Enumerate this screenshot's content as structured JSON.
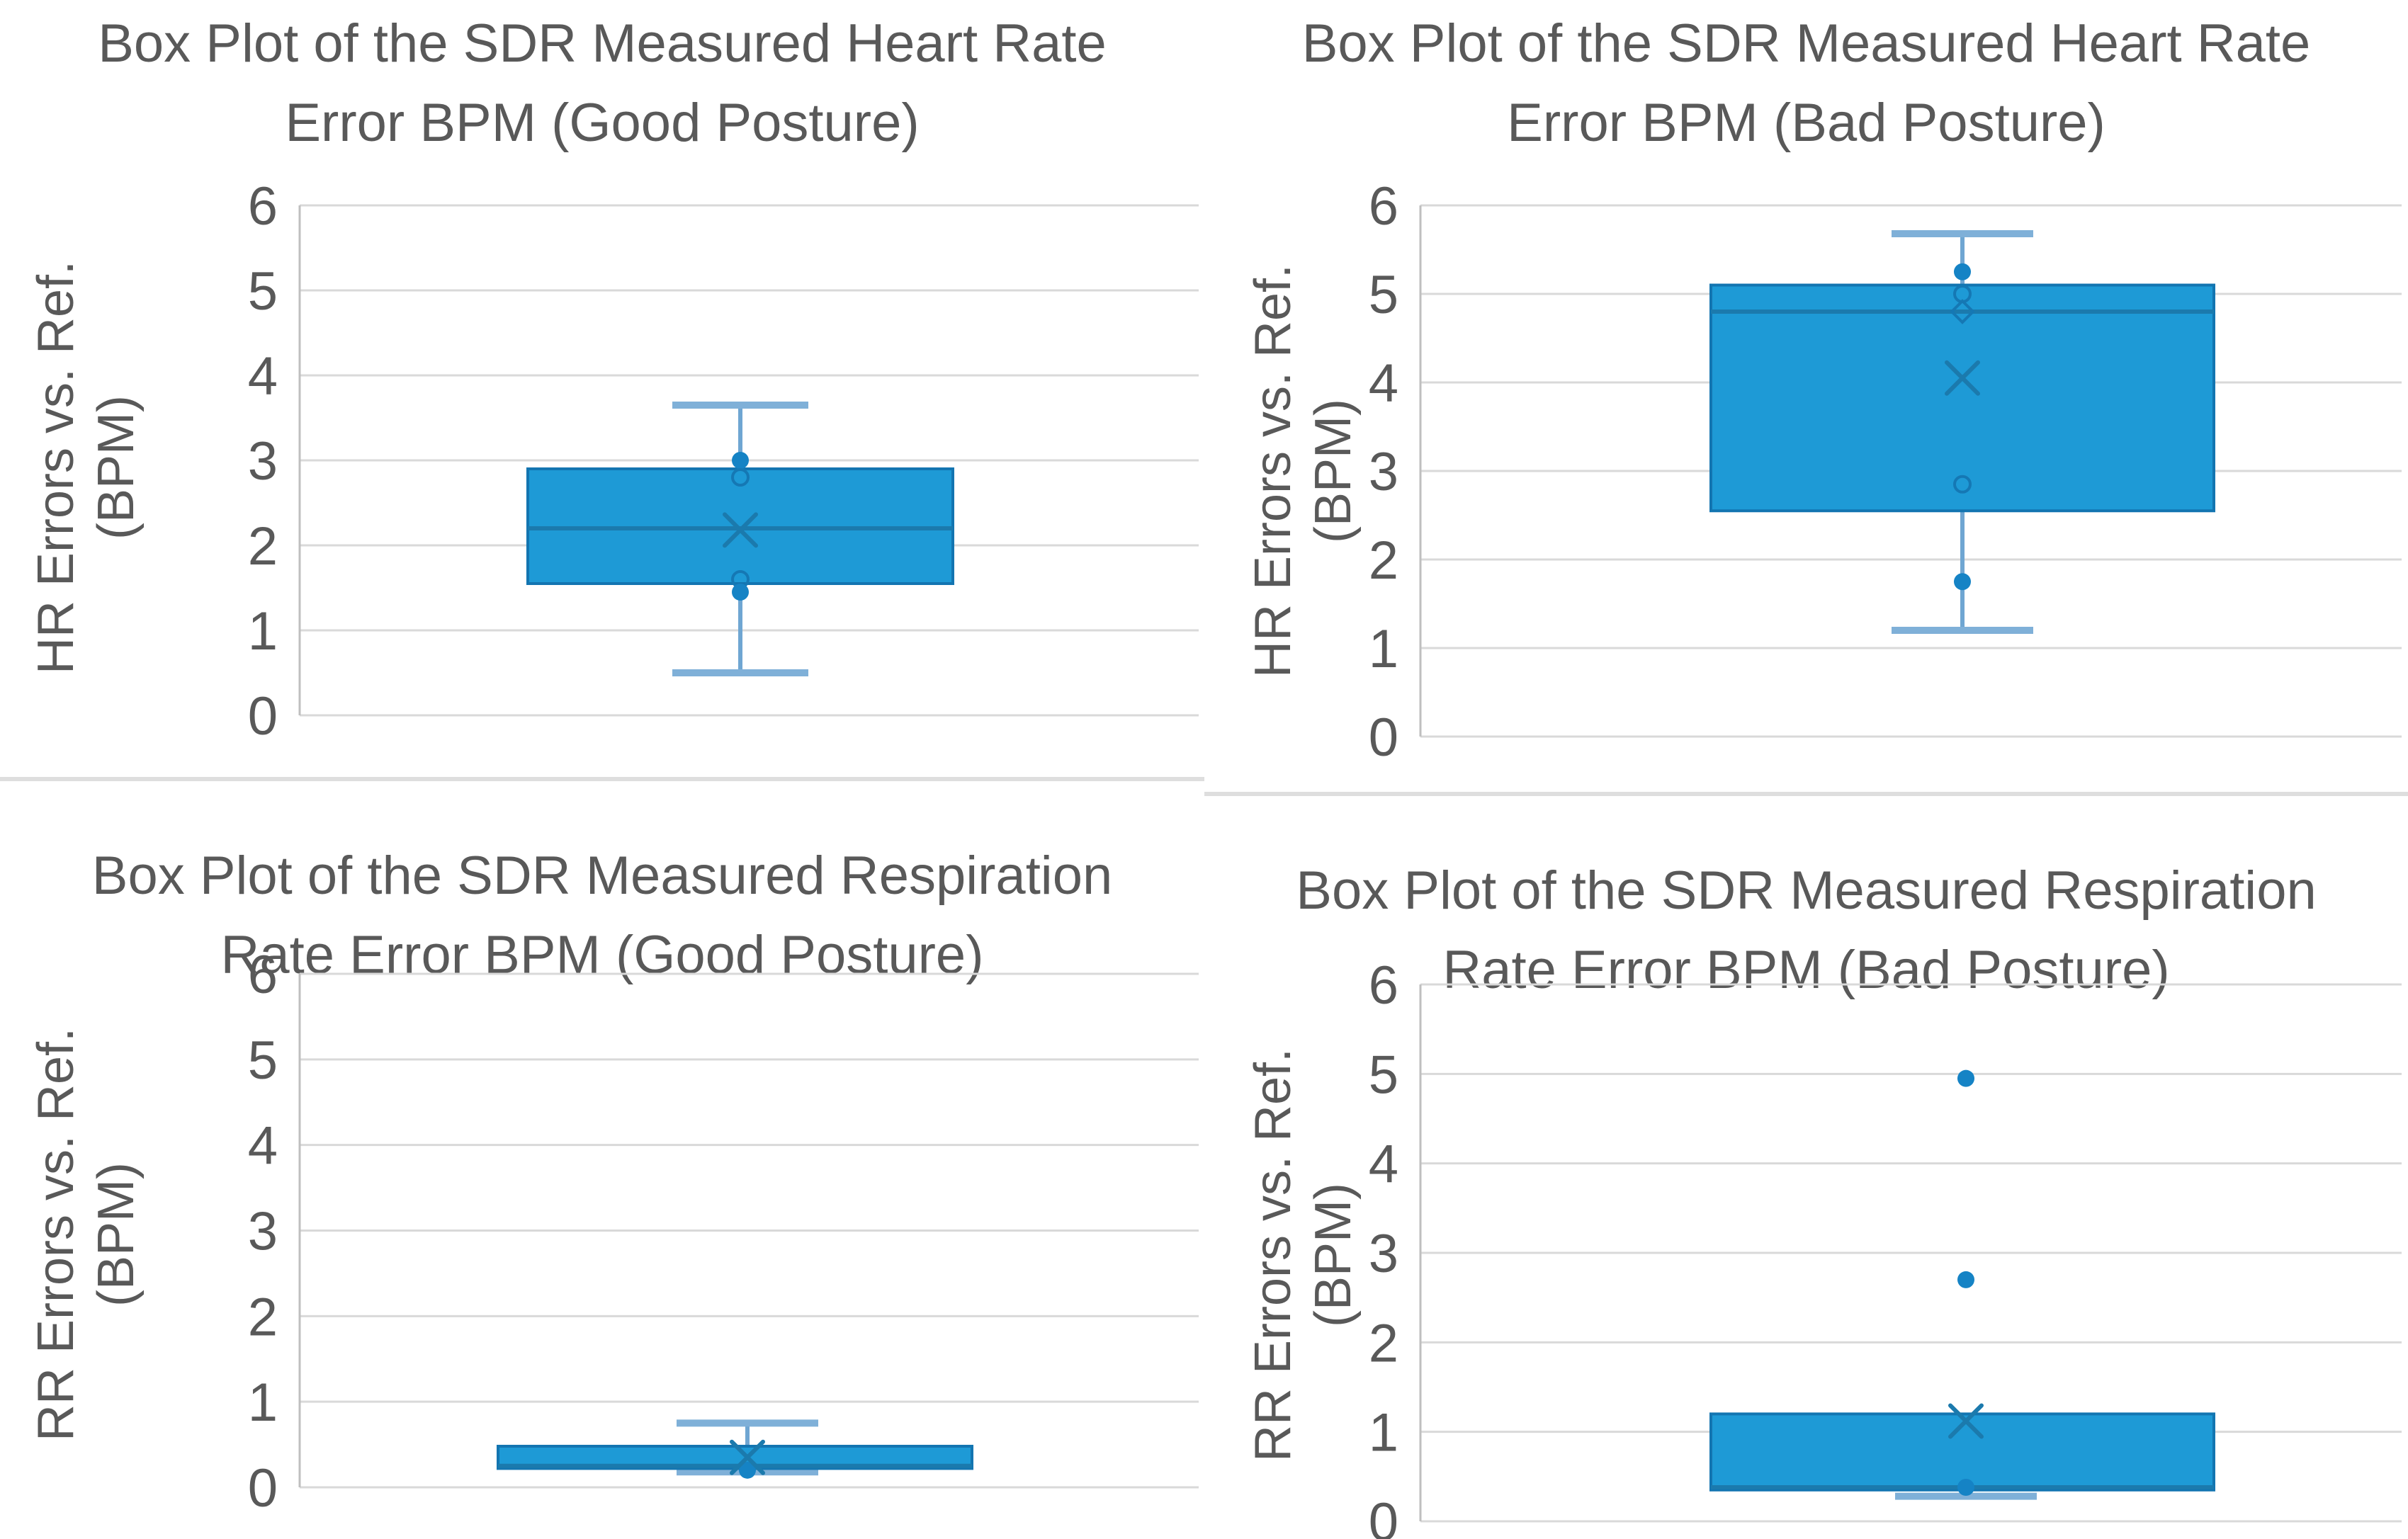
{
  "page": {
    "background": "#ffffff"
  },
  "palette": {
    "title_color": "#595959",
    "tick_color": "#595959",
    "axis_label_color": "#595959",
    "gridline_color": "#D9D9D9",
    "axis_line_color": "#BFBFBF",
    "box_fill": "#1E9AD6",
    "box_border": "#1375B1",
    "median_color": "#1B7AAD",
    "mean_color": "#1B7AAD",
    "whisker_line_color": "#6FA6D2",
    "whisker_cap_color": "#7FB0D8",
    "point_fill": "#1583C5",
    "point_open_stroke": "#1578B4",
    "divider_color": "#DEDEDE"
  },
  "chart_data": [
    {
      "type": "boxplot",
      "title_line1": "Box Plot of the SDR Measured Heart Rate",
      "title_line2": "Error BPM (Good Posture)",
      "ylabel_line1": "HR Errors vs. Ref.",
      "ylabel_line2": "(BPM)",
      "ylim": [
        0,
        6
      ],
      "yticks": [
        0,
        1,
        2,
        3,
        4,
        5,
        6
      ],
      "grid": "horizontal",
      "legend": "none",
      "box": {
        "q1": 1.55,
        "median": 2.2,
        "q3": 2.9,
        "mean": 2.18,
        "whisker_low": 0.5,
        "whisker_high": 3.65
      },
      "points": [
        {
          "value": 3.0,
          "style": "filled"
        },
        {
          "value": 2.8,
          "style": "open"
        },
        {
          "value": 1.6,
          "style": "open"
        },
        {
          "value": 1.45,
          "style": "filled"
        }
      ]
    },
    {
      "type": "boxplot",
      "title_line1": "Box Plot of the SDR Measured Heart Rate",
      "title_line2": "Error BPM (Bad Posture)",
      "ylabel_line1": "HR Errors vs. Ref.",
      "ylabel_line2": "(BPM)",
      "ylim": [
        0,
        6
      ],
      "yticks": [
        0,
        1,
        2,
        3,
        4,
        5,
        6
      ],
      "grid": "horizontal",
      "legend": "none",
      "box": {
        "q1": 2.55,
        "median": 4.8,
        "q3": 5.1,
        "mean": 4.05,
        "whisker_low": 1.2,
        "whisker_high": 5.68
      },
      "points": [
        {
          "value": 5.25,
          "style": "filled"
        },
        {
          "value": 5.0,
          "style": "open"
        },
        {
          "value": 4.8,
          "style": "diamond"
        },
        {
          "value": 2.85,
          "style": "open"
        },
        {
          "value": 1.75,
          "style": "filled"
        }
      ]
    },
    {
      "type": "boxplot",
      "title_line1": "Box Plot of the SDR Measured Respiration",
      "title_line2": "Rate Error BPM (Good Posture)",
      "ylabel_line1": "RR Errors vs. Ref.",
      "ylabel_line2": "(BPM)",
      "ylim": [
        0,
        6
      ],
      "yticks": [
        0,
        1,
        2,
        3,
        4,
        5,
        6
      ],
      "grid": "horizontal",
      "legend": "none",
      "box": {
        "q1": 0.22,
        "median": 0.25,
        "q3": 0.48,
        "mean": 0.35,
        "whisker_low": 0.18,
        "whisker_high": 0.75
      },
      "points": [
        {
          "value": 0.2,
          "style": "filled"
        }
      ]
    },
    {
      "type": "boxplot",
      "title_line1": "Box Plot of the SDR Measured Respiration",
      "title_line2": "Rate Error BPM (Bad Posture)",
      "ylabel_line1": "RR Errors vs. Ref.",
      "ylabel_line2": "(BPM)",
      "ylim": [
        0,
        6
      ],
      "yticks": [
        0,
        1,
        2,
        3,
        4,
        5,
        6
      ],
      "grid": "horizontal",
      "legend": "none",
      "box": {
        "q1": 0.35,
        "median": 0.38,
        "q3": 1.2,
        "mean": 1.12,
        "whisker_low": 0.28,
        "whisker_high": null
      },
      "points": [
        {
          "value": 4.95,
          "style": "filled"
        },
        {
          "value": 2.7,
          "style": "filled"
        },
        {
          "value": 0.38,
          "style": "filled"
        }
      ]
    }
  ]
}
